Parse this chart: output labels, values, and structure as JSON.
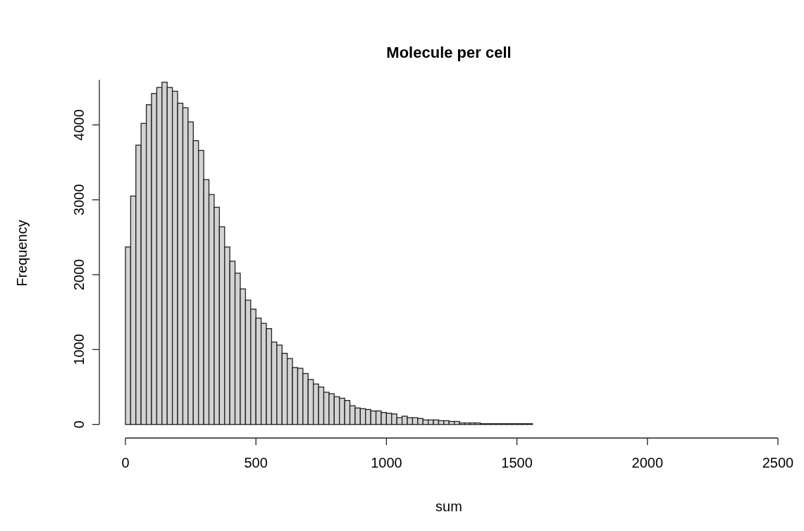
{
  "chart_data": {
    "type": "histogram",
    "title": "Molecule per cell",
    "xlabel": "sum",
    "ylabel": "Frequency",
    "color": "#d3d3d3",
    "bins": [
      0,
      20,
      40,
      60,
      80,
      100,
      120,
      140,
      160,
      180,
      200,
      220,
      240,
      260,
      280,
      300,
      320,
      340,
      360,
      380,
      400,
      420,
      440,
      460,
      480,
      500,
      520,
      540,
      560,
      580,
      600,
      620,
      640,
      660,
      680,
      700,
      720,
      740,
      760,
      780,
      800,
      820,
      840,
      860,
      880,
      900,
      920,
      940,
      960,
      980,
      1000,
      1020,
      1040,
      1060,
      1080,
      1100,
      1120,
      1140,
      1160,
      1180,
      1200,
      1220,
      1240,
      1260,
      1280,
      1300,
      1320,
      1340,
      1360,
      1380,
      1400,
      1420,
      1440,
      1460,
      1480,
      1500,
      1520,
      1540,
      1560,
      1580,
      1600,
      1620,
      1640,
      1660,
      1680,
      1700,
      1720,
      1740,
      1760,
      1780,
      1800,
      1820,
      1840,
      1860,
      1880,
      1900,
      1920,
      1940,
      1960,
      1980,
      2000,
      2020,
      2040,
      2060,
      2080,
      2100,
      2120,
      2140,
      2160,
      2180,
      2200,
      2220,
      2240,
      2260,
      2280,
      2300,
      2320,
      2340,
      2360,
      2380,
      2400,
      2420,
      2440,
      2460,
      2480
    ],
    "values": [
      2370,
      3050,
      3730,
      4020,
      4270,
      4420,
      4500,
      4570,
      4500,
      4450,
      4290,
      4230,
      4040,
      3790,
      3660,
      3270,
      3070,
      2900,
      2640,
      2370,
      2180,
      2020,
      1810,
      1660,
      1540,
      1420,
      1350,
      1280,
      1100,
      1060,
      950,
      880,
      760,
      750,
      680,
      600,
      540,
      500,
      430,
      410,
      370,
      350,
      320,
      250,
      220,
      210,
      200,
      180,
      180,
      160,
      150,
      140,
      90,
      110,
      90,
      90,
      80,
      60,
      60,
      60,
      50,
      50,
      40,
      40,
      20,
      20,
      20,
      20,
      10,
      10,
      10,
      10,
      10,
      10,
      10,
      10,
      10,
      10,
      0,
      0,
      0,
      0,
      0,
      0,
      0,
      0,
      0,
      0,
      0,
      0,
      0,
      0,
      0,
      0,
      0,
      0,
      0,
      0,
      0,
      0,
      0,
      0,
      0,
      0,
      0,
      0,
      0,
      0,
      0,
      0,
      0,
      0,
      0,
      0,
      0,
      0,
      0,
      0,
      0,
      0,
      0,
      0,
      0,
      0
    ],
    "xlim": [
      0,
      2500
    ],
    "ylim": [
      0,
      4600
    ],
    "xticks": [
      0,
      500,
      1000,
      1500,
      2000,
      2500
    ],
    "yticks": [
      0,
      1000,
      2000,
      3000,
      4000
    ]
  }
}
